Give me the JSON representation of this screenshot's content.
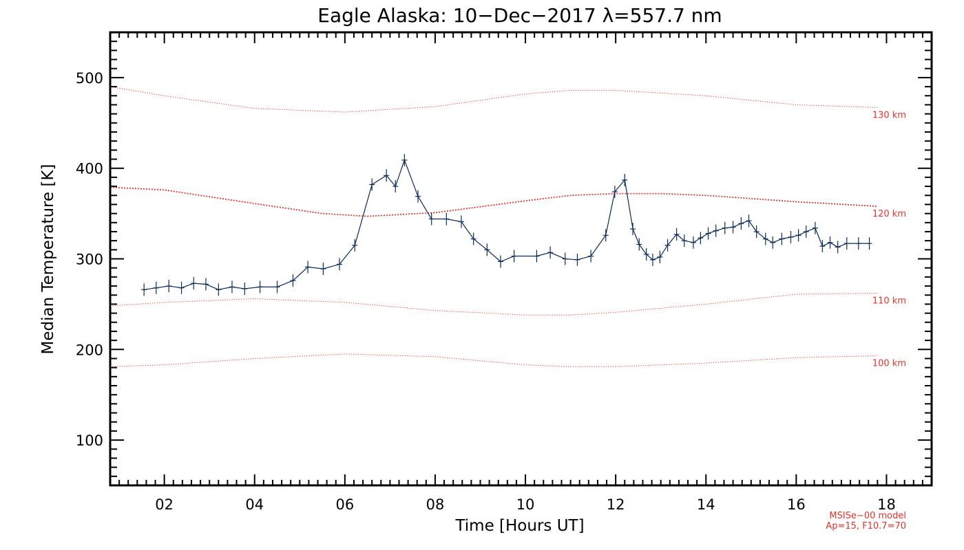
{
  "chart_data": {
    "type": "line",
    "title": "Eagle Alaska: 10−Dec−2017 λ=557.7 nm",
    "xlabel": "Time [Hours UT]",
    "ylabel": "Median Temperature [K]",
    "xlim": [
      0.8,
      19.0
    ],
    "ylim": [
      50,
      550
    ],
    "x_ticks": [
      2,
      4,
      6,
      8,
      10,
      12,
      14,
      16,
      18
    ],
    "x_tick_labels": [
      "02",
      "04",
      "06",
      "08",
      "10",
      "12",
      "14",
      "16",
      "18"
    ],
    "y_ticks": [
      100,
      200,
      300,
      400,
      500
    ],
    "y_tick_labels": [
      "100",
      "200",
      "300",
      "400",
      "500"
    ],
    "grid": false,
    "colors": {
      "data": "#0a2a5a",
      "model": "#e8322b",
      "axes": "#000000"
    },
    "series": [
      {
        "x": [
          1.55,
          1.82,
          2.1,
          2.38,
          2.65,
          2.92,
          3.2,
          3.5,
          3.78,
          4.12,
          4.5,
          4.85,
          5.18,
          5.52,
          5.88,
          6.22,
          6.6,
          6.92,
          7.12,
          7.32,
          7.62,
          7.92,
          8.25,
          8.58,
          8.85,
          9.15,
          9.45,
          9.75,
          10.25,
          10.55,
          10.88,
          11.15,
          11.45,
          11.78,
          11.98,
          12.2,
          12.38,
          12.52,
          12.68,
          12.82,
          12.98,
          13.15,
          13.35,
          13.52,
          13.72,
          13.88,
          14.05,
          14.22,
          14.42,
          14.6,
          14.78,
          14.95,
          15.12,
          15.32,
          15.48,
          15.68,
          15.88,
          16.05,
          16.22,
          16.42,
          16.58,
          16.75,
          16.92,
          17.12,
          17.38,
          17.62
        ],
        "y": [
          266,
          268,
          270,
          268,
          273,
          272,
          266,
          269,
          267,
          269,
          269,
          276,
          291,
          289,
          294,
          315,
          382,
          392,
          380,
          409,
          369,
          344,
          344,
          341,
          322,
          310,
          297,
          303,
          303,
          307,
          300,
          299,
          303,
          326,
          374,
          387,
          333,
          316,
          305,
          299,
          302,
          315,
          327,
          320,
          318,
          323,
          328,
          331,
          334,
          335,
          339,
          342,
          330,
          322,
          318,
          322,
          324,
          326,
          330,
          334,
          314,
          318,
          313,
          317,
          317,
          317
        ]
      }
    ],
    "model_series": [
      {
        "name": "130 km",
        "x": [
          0.8,
          2.0,
          4.0,
          6.0,
          8.0,
          10.0,
          11.0,
          12.0,
          14.0,
          16.0,
          17.8
        ],
        "y": [
          490,
          480,
          466,
          462,
          468,
          482,
          486,
          486,
          480,
          470,
          467
        ]
      },
      {
        "name": "120 km",
        "x": [
          0.8,
          2.0,
          4.0,
          5.5,
          6.5,
          8.0,
          10.0,
          11.0,
          12.0,
          13.0,
          14.0,
          16.0,
          17.8
        ],
        "y": [
          379,
          376,
          361,
          350,
          347,
          351,
          364,
          370,
          372,
          372,
          370,
          363,
          358
        ]
      },
      {
        "name": "110 km",
        "x": [
          0.8,
          2.0,
          4.0,
          6.0,
          8.0,
          10.0,
          11.0,
          12.0,
          14.0,
          16.0,
          17.8
        ],
        "y": [
          248,
          252,
          256,
          252,
          243,
          238,
          238,
          241,
          250,
          261,
          262
        ]
      },
      {
        "name": "100 km",
        "x": [
          0.8,
          2.0,
          4.0,
          6.0,
          8.0,
          10.0,
          11.0,
          12.0,
          14.0,
          16.0,
          17.8
        ],
        "y": [
          181,
          183,
          190,
          195,
          192,
          183,
          181,
          181,
          185,
          191,
          193
        ]
      }
    ],
    "annotations": [
      "MSISe−00 model",
      "Ap=15, F10.7=70"
    ]
  }
}
